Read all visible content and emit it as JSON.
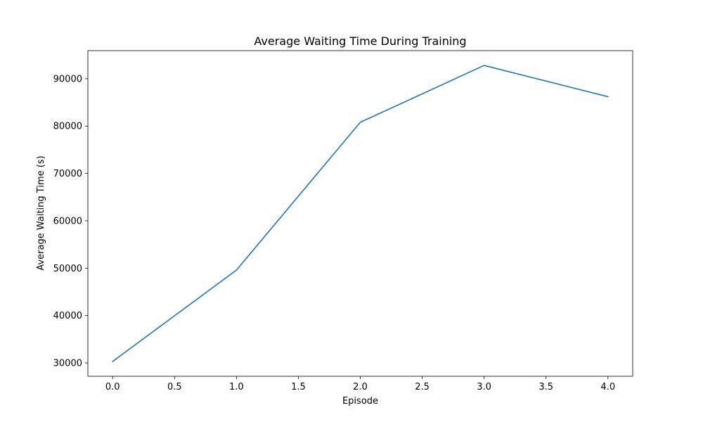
{
  "chart_data": {
    "type": "line",
    "title": "Average Waiting Time During Training",
    "xlabel": "Episode",
    "ylabel": "Average Waiting Time (s)",
    "x": [
      0,
      1,
      2,
      3,
      4
    ],
    "series": [
      {
        "values": [
          30300,
          49600,
          80800,
          92800,
          86200
        ],
        "color": "#1f77b4"
      }
    ],
    "xlim": [
      -0.2,
      4.2
    ],
    "ylim": [
      27175,
      95925
    ],
    "xticks": [
      0.0,
      0.5,
      1.0,
      1.5,
      2.0,
      2.5,
      3.0,
      3.5,
      4.0
    ],
    "xtick_labels": [
      "0.0",
      "0.5",
      "1.0",
      "1.5",
      "2.0",
      "2.5",
      "3.0",
      "3.5",
      "4.0"
    ],
    "yticks": [
      30000,
      40000,
      50000,
      60000,
      70000,
      80000,
      90000
    ],
    "ytick_labels": [
      "30000",
      "40000",
      "50000",
      "60000",
      "70000",
      "80000",
      "90000"
    ],
    "grid": false,
    "legend": false
  }
}
